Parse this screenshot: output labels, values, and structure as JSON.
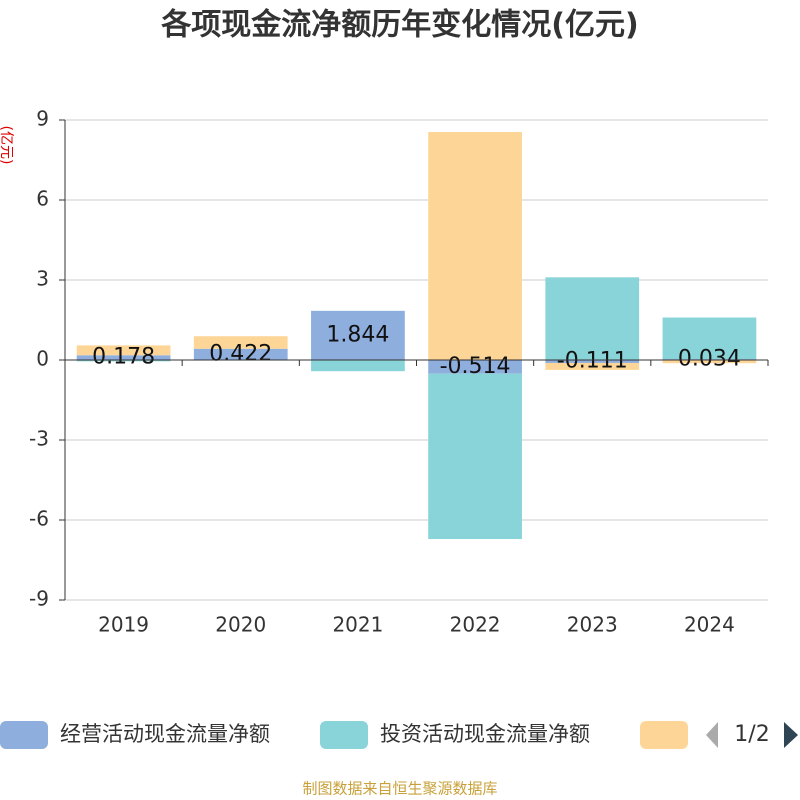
{
  "chart_data": {
    "type": "bar",
    "stacked": true,
    "title": "各项现金流净额历年变化情况(亿元)",
    "y_label": "(亿元)",
    "categories": [
      "2019",
      "2020",
      "2021",
      "2022",
      "2023",
      "2024"
    ],
    "series": [
      {
        "name": "经营活动现金流量净额",
        "color": "#8eaede",
        "values": [
          0.178,
          0.422,
          1.844,
          -0.514,
          -0.111,
          0.034
        ],
        "value_labels": true
      },
      {
        "name": "投资活动现金流量净额",
        "color": "#88d4d8",
        "values": [
          -0.05,
          -0.02,
          -0.42,
          -6.2,
          3.1,
          1.56
        ]
      },
      {
        "color": "#fdd697",
        "values": [
          0.37,
          0.47,
          0,
          8.55,
          -0.26,
          -0.12
        ]
      }
    ],
    "ylim": [
      -9,
      9
    ],
    "yticks": [
      -9,
      -6,
      -3,
      0,
      3,
      6,
      9
    ],
    "grid": true,
    "legend_page": "1/2",
    "footer": "制图数据来自恒生聚源数据库"
  }
}
